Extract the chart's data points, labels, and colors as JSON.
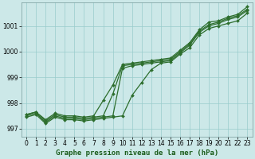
{
  "title": "Graphe pression niveau de la mer (hPa)",
  "background_color": "#cce8e8",
  "grid_color": "#99cccc",
  "line_color": "#2d6e2d",
  "xlim": [
    -0.5,
    23.5
  ],
  "ylim": [
    996.7,
    1001.9
  ],
  "yticks": [
    997,
    998,
    999,
    1000,
    1001
  ],
  "xticks": [
    0,
    1,
    2,
    3,
    4,
    5,
    6,
    7,
    8,
    9,
    10,
    11,
    12,
    13,
    14,
    15,
    16,
    17,
    18,
    19,
    20,
    21,
    22,
    23
  ],
  "series": [
    [
      997.55,
      997.65,
      997.35,
      997.6,
      997.5,
      997.5,
      997.45,
      997.5,
      998.1,
      998.7,
      999.5,
      999.55,
      999.6,
      999.65,
      999.7,
      999.75,
      1000.05,
      1000.35,
      1000.85,
      1001.15,
      1001.2,
      1001.35,
      1001.45,
      1001.75
    ],
    [
      997.55,
      997.65,
      997.3,
      997.55,
      997.45,
      997.45,
      997.4,
      997.45,
      997.5,
      998.35,
      999.45,
      999.5,
      999.55,
      999.6,
      999.65,
      999.7,
      1000.0,
      1000.3,
      1000.8,
      1001.05,
      1001.15,
      1001.3,
      1001.4,
      1001.65
    ],
    [
      997.5,
      997.6,
      997.25,
      997.5,
      997.4,
      997.4,
      997.35,
      997.4,
      997.45,
      997.5,
      999.35,
      999.45,
      999.5,
      999.55,
      999.6,
      999.65,
      999.95,
      1000.25,
      1000.75,
      1001.0,
      1001.1,
      1001.25,
      1001.35,
      1001.6
    ],
    [
      997.45,
      997.55,
      997.2,
      997.45,
      997.35,
      997.35,
      997.3,
      997.35,
      997.4,
      997.45,
      997.5,
      998.3,
      998.8,
      999.3,
      999.55,
      999.6,
      999.9,
      1000.15,
      1000.65,
      1000.9,
      1001.0,
      1001.1,
      1001.2,
      1001.5
    ]
  ],
  "marker": "D",
  "markersize": 2.0,
  "linewidth": 0.9,
  "tick_fontsize": 5.5,
  "label_fontsize": 6.5
}
